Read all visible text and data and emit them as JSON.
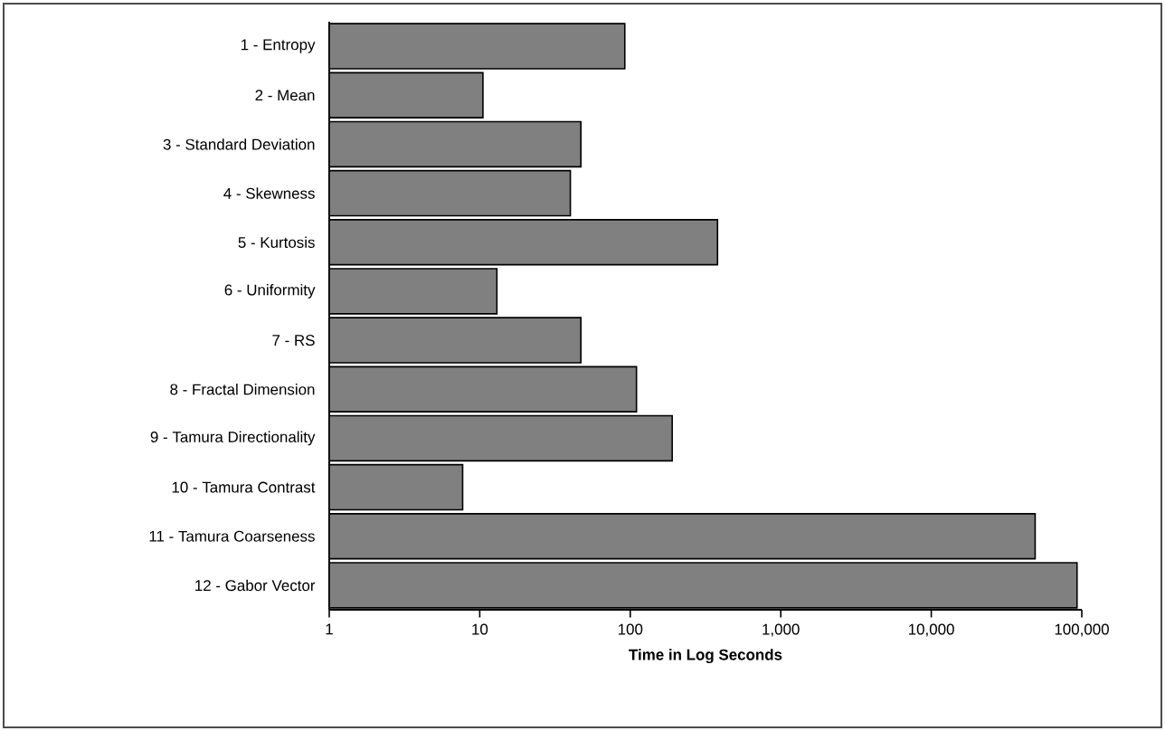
{
  "chart_data": {
    "type": "bar",
    "orientation": "horizontal",
    "log": "x",
    "xlabel": "Time in Log Seconds",
    "categories": [
      "1 - Entropy",
      "2 - Mean",
      "3 - Standard Deviation",
      "4 - Skewness",
      "5 - Kurtosis",
      "6 - Uniformity",
      "7 - RS",
      "8 - Fractal Dimension",
      "9 - Tamura Directionality",
      "10 - Tamura Contrast",
      "11 - Tamura Coarseness",
      "12 - Gabor Vector"
    ],
    "values": [
      92,
      10.5,
      47,
      40,
      380,
      13,
      47,
      110,
      190,
      7.7,
      49000,
      93000
    ],
    "color": "#808080",
    "xlim": [
      1,
      100000
    ],
    "xticks": [
      1,
      10,
      100,
      {
        "value": 1000,
        "label": "1,000"
      },
      {
        "value": 10000,
        "label": "10,000"
      },
      {
        "value": 100000,
        "label": "100,000"
      }
    ]
  }
}
